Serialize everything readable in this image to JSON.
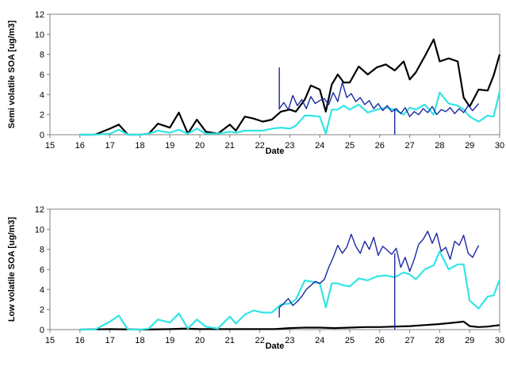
{
  "chart_data": [
    {
      "type": "line",
      "xlabel": "Date",
      "ylabel": "Semi volatile SOA [ug/m3]",
      "xlim": [
        15,
        30
      ],
      "ylim": [
        0,
        12
      ],
      "xticks": [
        "15",
        "16",
        "17",
        "18",
        "19",
        "20",
        "21",
        "22",
        "23",
        "24",
        "25",
        "26",
        "27",
        "28",
        "29",
        "30"
      ],
      "yticks": [
        "0",
        "2",
        "4",
        "6",
        "8",
        "10",
        "12"
      ],
      "grid": false,
      "legend": "none",
      "series": [
        {
          "color": "#000000",
          "x": [
            16,
            16.5,
            17,
            17.3,
            17.6,
            18,
            18.3,
            18.6,
            19,
            19.3,
            19.6,
            19.9,
            20.2,
            20.6,
            21,
            21.2,
            21.5,
            21.8,
            22.1,
            22.4,
            22.7,
            23,
            23.2,
            23.5,
            23.7,
            24,
            24.2,
            24.4,
            24.6,
            24.8,
            25,
            25.3,
            25.6,
            25.9,
            26.2,
            26.5,
            26.8,
            27.0,
            27.2,
            27.5,
            27.8,
            28.0,
            28.3,
            28.6,
            28.8,
            29.0,
            29.3,
            29.6,
            29.8,
            30
          ],
          "y": [
            0,
            0,
            0.6,
            1.0,
            0,
            0,
            0.1,
            1.1,
            0.7,
            2.2,
            0.1,
            1.5,
            0.3,
            0.1,
            1.0,
            0.4,
            1.8,
            1.6,
            1.3,
            1.5,
            2.3,
            2.5,
            2.3,
            3.5,
            4.9,
            4.5,
            2.3,
            5.0,
            6.0,
            5.2,
            5.2,
            6.8,
            6.0,
            6.7,
            7.0,
            6.4,
            7.3,
            5.5,
            6.2,
            7.8,
            9.5,
            7.3,
            7.6,
            7.3,
            3.7,
            2.8,
            4.5,
            4.4,
            5.9,
            8.0
          ]
        },
        {
          "color": "#33e5e5",
          "x": [
            16,
            16.5,
            17,
            17.3,
            17.6,
            18,
            18.3,
            18.6,
            19,
            19.3,
            19.6,
            19.9,
            20.2,
            20.6,
            21,
            21.2,
            21.5,
            21.8,
            22.1,
            22.4,
            22.7,
            23,
            23.2,
            23.5,
            23.7,
            24,
            24.2,
            24.4,
            24.6,
            24.8,
            25,
            25.3,
            25.6,
            25.9,
            26.2,
            26.5,
            26.8,
            27.0,
            27.2,
            27.5,
            27.8,
            28.0,
            28.3,
            28.6,
            28.8,
            29.0,
            29.3,
            29.6,
            29.8,
            30
          ],
          "y": [
            0,
            0,
            0.1,
            0.5,
            0,
            0,
            0.1,
            0.4,
            0.2,
            0.5,
            0.1,
            0.6,
            0.1,
            0.1,
            0.3,
            0.2,
            0.4,
            0.4,
            0.4,
            0.6,
            0.7,
            0.6,
            0.9,
            1.9,
            1.9,
            1.8,
            0.1,
            2.5,
            2.5,
            2.9,
            2.5,
            3.0,
            2.2,
            2.5,
            2.7,
            2.5,
            2.0,
            2.7,
            2.5,
            3.0,
            2.0,
            4.2,
            3.1,
            2.9,
            2.5,
            1.8,
            1.3,
            1.9,
            1.8,
            4.3
          ]
        },
        {
          "color": "#1a2aa0",
          "x": [
            22.65,
            22.8,
            22.95,
            23.1,
            23.25,
            23.4,
            23.55,
            23.7,
            23.85,
            24.0,
            24.15,
            24.3,
            24.45,
            24.6,
            24.75,
            24.9,
            25.05,
            25.2,
            25.35,
            25.5,
            25.65,
            25.8,
            25.95,
            26.1,
            26.25,
            26.4,
            26.55,
            26.7,
            26.85,
            27.0,
            27.15,
            27.3,
            27.45,
            27.6,
            27.75,
            27.9,
            28.05,
            28.2,
            28.35,
            28.5,
            28.65,
            28.8,
            28.95,
            29.1,
            29.3
          ],
          "y": [
            2.6,
            3.2,
            2.5,
            3.9,
            2.9,
            3.5,
            2.6,
            3.8,
            3.1,
            3.4,
            3.6,
            3.0,
            4.2,
            3.3,
            5.2,
            3.7,
            4.1,
            3.3,
            3.7,
            3.0,
            3.4,
            2.6,
            3.1,
            2.4,
            2.9,
            2.3,
            2.6,
            2.1,
            2.7,
            1.8,
            2.3,
            2.0,
            2.6,
            2.2,
            2.8,
            2.0,
            2.5,
            2.3,
            2.7,
            2.1,
            2.6,
            2.2,
            2.9,
            2.4,
            3.1
          ]
        }
      ]
    },
    {
      "type": "line",
      "xlabel": "Date",
      "ylabel": "Low volatile SOA [ug/m3]",
      "xlim": [
        15,
        30
      ],
      "ylim": [
        0,
        12
      ],
      "xticks": [
        "15",
        "16",
        "17",
        "18",
        "19",
        "20",
        "21",
        "22",
        "23",
        "24",
        "25",
        "26",
        "27",
        "28",
        "29",
        "30"
      ],
      "yticks": [
        "0",
        "2",
        "4",
        "6",
        "8",
        "10",
        "12"
      ],
      "grid": false,
      "legend": "none",
      "series": [
        {
          "color": "#000000",
          "x": [
            16,
            17,
            18,
            19,
            19.5,
            20,
            21,
            22,
            22.5,
            23,
            23.5,
            24,
            24.5,
            25,
            25.5,
            26,
            26.5,
            27,
            27.5,
            28,
            28.5,
            28.8,
            29.0,
            29.3,
            29.6,
            30
          ],
          "y": [
            0,
            0.05,
            0,
            0.05,
            0.1,
            0.05,
            0.05,
            0.05,
            0.05,
            0.15,
            0.2,
            0.2,
            0.15,
            0.2,
            0.25,
            0.25,
            0.3,
            0.35,
            0.45,
            0.55,
            0.7,
            0.8,
            0.35,
            0.25,
            0.3,
            0.45
          ]
        },
        {
          "color": "#33e5e5",
          "x": [
            16,
            16.5,
            17,
            17.3,
            17.6,
            18,
            18.3,
            18.6,
            19,
            19.3,
            19.6,
            19.9,
            20.2,
            20.6,
            21,
            21.2,
            21.5,
            21.8,
            22.1,
            22.4,
            22.7,
            23,
            23.2,
            23.5,
            23.7,
            24,
            24.2,
            24.4,
            24.6,
            24.8,
            25,
            25.3,
            25.6,
            25.9,
            26.2,
            26.5,
            26.8,
            27.0,
            27.2,
            27.5,
            27.8,
            28.0,
            28.3,
            28.6,
            28.8,
            29.0,
            29.3,
            29.6,
            29.8,
            30
          ],
          "y": [
            0,
            0,
            0.8,
            1.4,
            0,
            0,
            0.1,
            1.0,
            0.7,
            1.6,
            0.1,
            1.0,
            0.3,
            0.1,
            1.3,
            0.6,
            1.5,
            1.9,
            1.7,
            1.7,
            2.5,
            2.6,
            3.0,
            4.9,
            4.8,
            4.6,
            2.2,
            4.6,
            4.6,
            4.4,
            4.3,
            5.1,
            4.9,
            5.3,
            5.4,
            5.2,
            5.7,
            5.5,
            5.0,
            6.0,
            6.4,
            7.8,
            6.0,
            6.5,
            6.5,
            2.9,
            2.1,
            3.3,
            3.4,
            5.0
          ]
        },
        {
          "color": "#1a2aa0",
          "x": [
            22.65,
            22.8,
            22.95,
            23.1,
            23.25,
            23.4,
            23.55,
            23.7,
            23.85,
            24.0,
            24.15,
            24.3,
            24.45,
            24.6,
            24.75,
            24.9,
            25.05,
            25.2,
            25.35,
            25.5,
            25.65,
            25.8,
            25.95,
            26.1,
            26.25,
            26.4,
            26.55,
            26.7,
            26.85,
            27.0,
            27.15,
            27.3,
            27.45,
            27.6,
            27.75,
            27.9,
            28.05,
            28.2,
            28.35,
            28.5,
            28.65,
            28.8,
            28.95,
            29.1,
            29.3
          ],
          "y": [
            2.2,
            2.6,
            3.1,
            2.4,
            2.8,
            3.3,
            4.0,
            4.4,
            4.8,
            4.6,
            5.0,
            6.2,
            7.2,
            8.4,
            7.6,
            8.2,
            9.5,
            8.3,
            7.6,
            8.8,
            8.0,
            9.2,
            7.4,
            8.3,
            7.9,
            7.5,
            8.1,
            6.2,
            7.2,
            5.8,
            7.0,
            8.5,
            9.0,
            9.8,
            8.6,
            9.6,
            7.8,
            8.2,
            7.0,
            8.8,
            8.4,
            9.4,
            7.6,
            7.2,
            8.4
          ]
        }
      ]
    }
  ]
}
